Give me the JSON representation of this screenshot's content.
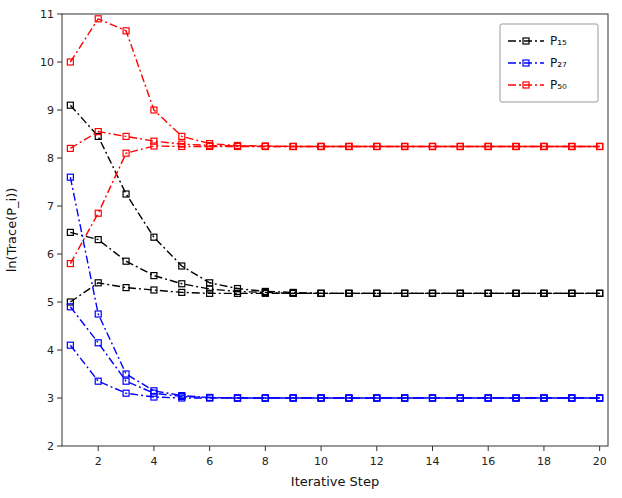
{
  "chart_data": {
    "type": "line",
    "xlabel": "Iterative Step",
    "ylabel": "ln(Trace(P_i))",
    "x": [
      1,
      2,
      3,
      4,
      5,
      6,
      7,
      8,
      9,
      10,
      11,
      12,
      13,
      14,
      15,
      16,
      17,
      18,
      19,
      20
    ],
    "xlim": [
      0.7,
      20.3
    ],
    "ylim": [
      2,
      11
    ],
    "xticks": [
      2,
      4,
      6,
      8,
      10,
      12,
      14,
      16,
      18,
      20
    ],
    "yticks": [
      2,
      3,
      4,
      5,
      6,
      7,
      8,
      9,
      10,
      11
    ],
    "marker": "square",
    "line_style": "dashdot",
    "legend": "upper right",
    "grid": false,
    "series": [
      {
        "name": "P₁₅",
        "color": "#000000",
        "values": [
          9.1,
          8.45,
          7.25,
          6.35,
          5.75,
          5.4,
          5.28,
          5.22,
          5.2,
          5.18,
          5.18,
          5.18,
          5.18,
          5.18,
          5.18,
          5.18,
          5.18,
          5.18,
          5.18,
          5.18
        ]
      },
      {
        "color": "#000000",
        "values": [
          6.45,
          6.3,
          5.85,
          5.55,
          5.38,
          5.27,
          5.22,
          5.2,
          5.18,
          5.18,
          5.18,
          5.18,
          5.18,
          5.18,
          5.18,
          5.18,
          5.18,
          5.18,
          5.18,
          5.18
        ]
      },
      {
        "color": "#000000",
        "values": [
          5.0,
          5.4,
          5.3,
          5.25,
          5.2,
          5.18,
          5.18,
          5.18,
          5.18,
          5.18,
          5.18,
          5.18,
          5.18,
          5.18,
          5.18,
          5.18,
          5.18,
          5.18,
          5.18,
          5.18
        ]
      },
      {
        "name": "P₂₇",
        "color": "#0000FF",
        "values": [
          7.6,
          4.75,
          3.5,
          3.15,
          3.05,
          3.01,
          3.0,
          3.0,
          3.0,
          3.0,
          3.0,
          3.0,
          3.0,
          3.0,
          3.0,
          3.0,
          3.0,
          3.0,
          3.0,
          3.0
        ]
      },
      {
        "color": "#0000FF",
        "values": [
          4.9,
          4.15,
          3.35,
          3.1,
          3.03,
          3.01,
          3.0,
          3.0,
          3.0,
          3.0,
          3.0,
          3.0,
          3.0,
          3.0,
          3.0,
          3.0,
          3.0,
          3.0,
          3.0,
          3.0
        ]
      },
      {
        "color": "#0000FF",
        "values": [
          4.1,
          3.35,
          3.1,
          3.02,
          3.0,
          3.0,
          3.0,
          3.0,
          3.0,
          3.0,
          3.0,
          3.0,
          3.0,
          3.0,
          3.0,
          3.0,
          3.0,
          3.0,
          3.0,
          3.0
        ]
      },
      {
        "name": "P₅₀",
        "color": "#FF0000",
        "values": [
          10.0,
          10.9,
          10.65,
          9.0,
          8.45,
          8.3,
          8.26,
          8.25,
          8.24,
          8.24,
          8.24,
          8.24,
          8.24,
          8.24,
          8.24,
          8.24,
          8.24,
          8.24,
          8.24,
          8.24
        ]
      },
      {
        "color": "#FF0000",
        "values": [
          8.2,
          8.55,
          8.45,
          8.35,
          8.29,
          8.26,
          8.25,
          8.24,
          8.24,
          8.24,
          8.24,
          8.24,
          8.24,
          8.24,
          8.24,
          8.24,
          8.24,
          8.24,
          8.24,
          8.24
        ]
      },
      {
        "color": "#FF0000",
        "values": [
          5.8,
          6.85,
          8.1,
          8.25,
          8.24,
          8.24,
          8.24,
          8.24,
          8.24,
          8.24,
          8.24,
          8.24,
          8.24,
          8.24,
          8.24,
          8.24,
          8.24,
          8.24,
          8.24,
          8.24
        ]
      }
    ]
  }
}
